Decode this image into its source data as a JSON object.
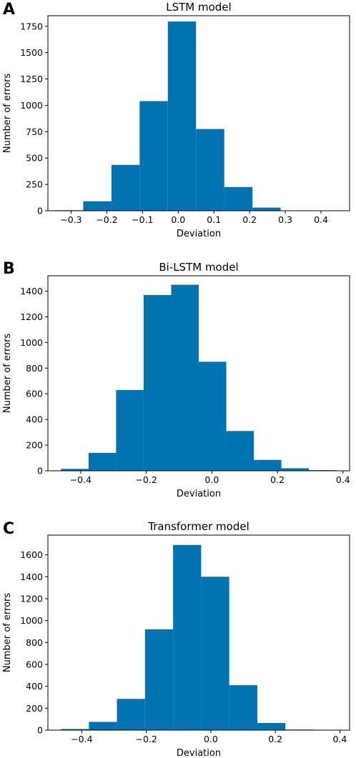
{
  "colors": {
    "bar": "#0173b2"
  },
  "chart_data": [
    {
      "type": "histogram",
      "panel": "A",
      "title": "LSTM model",
      "xlabel": "Deviation",
      "ylabel": "Number of errors",
      "xlim": [
        -0.365,
        0.48
      ],
      "ylim": [
        0,
        1850
      ],
      "xticks": [
        -0.3,
        -0.2,
        -0.1,
        0.0,
        0.1,
        0.2,
        0.3,
        0.4
      ],
      "xtick_labels": [
        "−0.3",
        "−0.2",
        "−0.1",
        "0.0",
        "0.1",
        "0.2",
        "0.3",
        "0.4"
      ],
      "yticks": [
        0,
        250,
        500,
        750,
        1000,
        1250,
        1500,
        1750
      ],
      "ytick_labels": [
        "0",
        "250",
        "500",
        "750",
        "1000",
        "1250",
        "1500",
        "1750"
      ],
      "bin_edges": [
        -0.345,
        -0.266,
        -0.187,
        -0.108,
        -0.029,
        0.05,
        0.129,
        0.208,
        0.287,
        0.366,
        0.445
      ],
      "counts": [
        5,
        90,
        435,
        1040,
        1795,
        775,
        225,
        30,
        3,
        2
      ],
      "grid": false
    },
    {
      "type": "histogram",
      "panel": "B",
      "title": "Bi-LSTM model",
      "xlabel": "Deviation",
      "ylabel": "Number of errors",
      "xlim": [
        -0.5,
        0.42
      ],
      "ylim": [
        0,
        1520
      ],
      "xticks": [
        -0.4,
        -0.2,
        0.0,
        0.2,
        0.4
      ],
      "xtick_labels": [
        "−0.4",
        "−0.2",
        "0.0",
        "0.2",
        "0.4"
      ],
      "yticks": [
        0,
        200,
        400,
        600,
        800,
        1000,
        1200,
        1400
      ],
      "ytick_labels": [
        "0",
        "200",
        "400",
        "600",
        "800",
        "1000",
        "1200",
        "1400"
      ],
      "bin_edges": [
        -0.46,
        -0.376,
        -0.292,
        -0.208,
        -0.124,
        -0.04,
        0.044,
        0.128,
        0.212,
        0.296,
        0.38
      ],
      "counts": [
        15,
        140,
        630,
        1370,
        1450,
        850,
        310,
        85,
        20,
        5
      ],
      "grid": false
    },
    {
      "type": "histogram",
      "panel": "C",
      "title": "Transformer model",
      "xlabel": "Deviation",
      "ylabel": "Number of errors",
      "xlim": [
        -0.505,
        0.43
      ],
      "ylim": [
        0,
        1780
      ],
      "xticks": [
        -0.4,
        -0.2,
        0.0,
        0.2,
        0.4
      ],
      "xtick_labels": [
        "−0.4",
        "−0.2",
        "0.0",
        "0.2",
        "0.4"
      ],
      "yticks": [
        0,
        200,
        400,
        600,
        800,
        1000,
        1200,
        1400,
        1600
      ],
      "ytick_labels": [
        "0",
        "200",
        "400",
        "600",
        "800",
        "1000",
        "1200",
        "1400",
        "1600"
      ],
      "bin_edges": [
        -0.465,
        -0.378,
        -0.291,
        -0.204,
        -0.117,
        -0.03,
        0.057,
        0.144,
        0.231,
        0.318,
        0.405
      ],
      "counts": [
        10,
        75,
        285,
        920,
        1690,
        1400,
        410,
        65,
        5,
        2
      ],
      "grid": false
    }
  ]
}
